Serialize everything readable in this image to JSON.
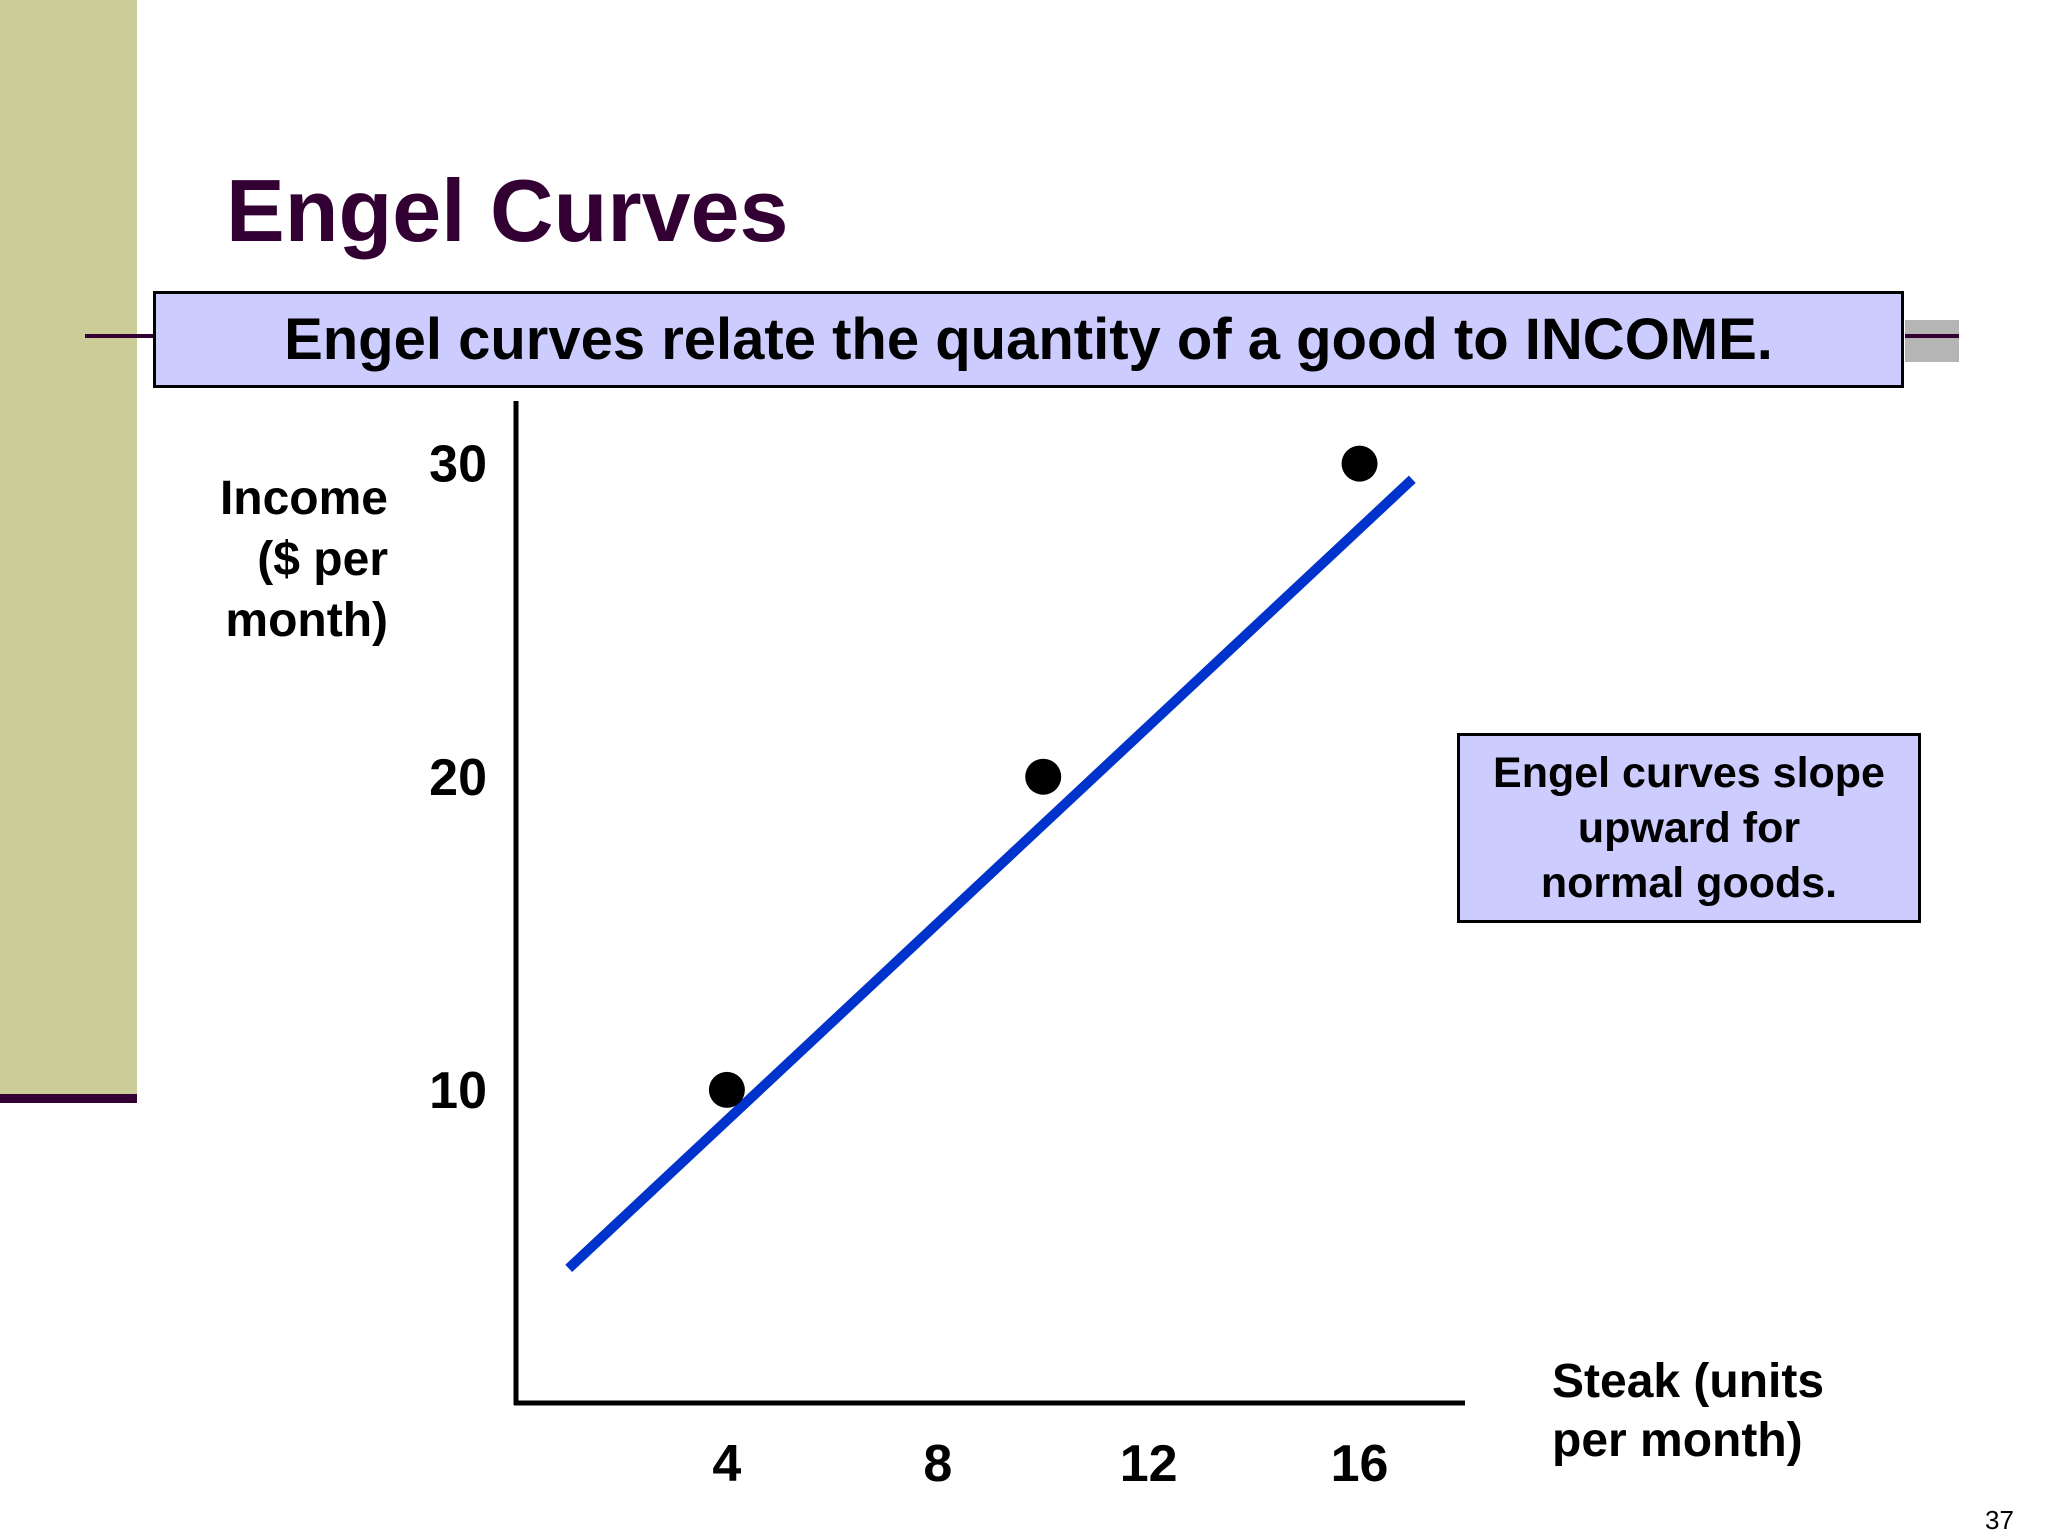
{
  "slide": {
    "title": "Engel Curves",
    "banner": "Engel curves relate the quantity of a good to INCOME.",
    "note": "Engel curves slope\nupward for\nnormal goods.",
    "page_number": "37"
  },
  "colors": {
    "title": "#330033",
    "left_bar": "#cccc99",
    "box_fill": "#ccccff",
    "curve": "#0033cc",
    "points": "#000000"
  },
  "chart_data": {
    "type": "line",
    "ylabel_lines": [
      "Income",
      "($ per",
      "month)"
    ],
    "xlabel_lines": [
      "Steak (units",
      "per month)"
    ],
    "x_ticks": [
      {
        "value": 4,
        "label": "4"
      },
      {
        "value": 8,
        "label": "8"
      },
      {
        "value": 12,
        "label": "12"
      },
      {
        "value": 16,
        "label": "16"
      }
    ],
    "y_ticks": [
      {
        "value": 10,
        "label": "10"
      },
      {
        "value": 20,
        "label": "20"
      },
      {
        "value": 30,
        "label": "30"
      }
    ],
    "xlim": [
      0,
      18
    ],
    "ylim": [
      0,
      32
    ],
    "series": [
      {
        "line": [
          [
            1.0,
            4.3
          ],
          [
            17.0,
            29.5
          ]
        ],
        "points": [
          [
            4,
            10
          ],
          [
            10,
            20
          ],
          [
            16,
            30
          ]
        ]
      }
    ],
    "grid": false
  }
}
